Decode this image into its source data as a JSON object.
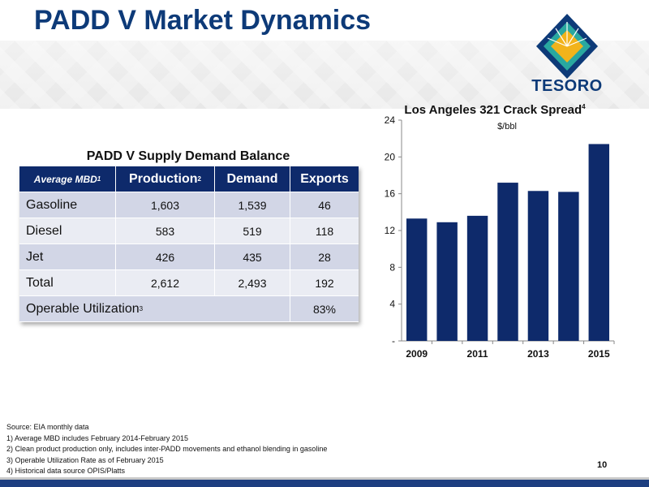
{
  "title": "PADD V Market Dynamics",
  "logo": {
    "name": "TESORO",
    "colors": [
      "#0d3a78",
      "#29a8a0",
      "#f2b31b"
    ]
  },
  "table": {
    "title": "PADD V Supply Demand Balance",
    "header": {
      "label": "Average MBD",
      "label_note": "1",
      "col1": "Production",
      "col1_note": "2",
      "col2": "Demand",
      "col3": "Exports"
    },
    "rows": [
      {
        "label": "Gasoline",
        "production": "1,603",
        "demand": "1,539",
        "exports": "46"
      },
      {
        "label": "Diesel",
        "production": "583",
        "demand": "519",
        "exports": "118"
      },
      {
        "label": "Jet",
        "production": "426",
        "demand": "435",
        "exports": "28"
      },
      {
        "label": "Total",
        "production": "2,612",
        "demand": "2,493",
        "exports": "192"
      }
    ],
    "utilization": {
      "label": "Operable Utilization",
      "note": "3",
      "value": "83%"
    }
  },
  "chart_data": {
    "type": "bar",
    "title": "Los Angeles 321 Crack Spread",
    "title_note": "4",
    "unit_label": "$/bbl",
    "categories": [
      "2009",
      "2010",
      "2011",
      "2012",
      "2013",
      "2014",
      "2015"
    ],
    "x_tick_labels": [
      "2009",
      "",
      "2011",
      "",
      "2013",
      "",
      "2015"
    ],
    "values": [
      13.3,
      12.9,
      13.6,
      17.2,
      16.3,
      16.2,
      21.4
    ],
    "ylim": [
      0,
      24
    ],
    "yticks": [
      0,
      4,
      8,
      12,
      16,
      20,
      24
    ],
    "ytick_labels": [
      "-",
      "4",
      "8",
      "12",
      "16",
      "20",
      "24"
    ],
    "bar_color": "#0e2a6b",
    "grid": false
  },
  "notes": [
    "Source: EIA monthly data",
    "1) Average MBD includes February 2014-February 2015",
    "2) Clean product production only, includes inter-PADD movements and ethanol blending in gasoline",
    "3) Operable Utilization Rate as of February 2015",
    "4) Historical data source OPIS/Platts"
  ],
  "page_number": "10"
}
